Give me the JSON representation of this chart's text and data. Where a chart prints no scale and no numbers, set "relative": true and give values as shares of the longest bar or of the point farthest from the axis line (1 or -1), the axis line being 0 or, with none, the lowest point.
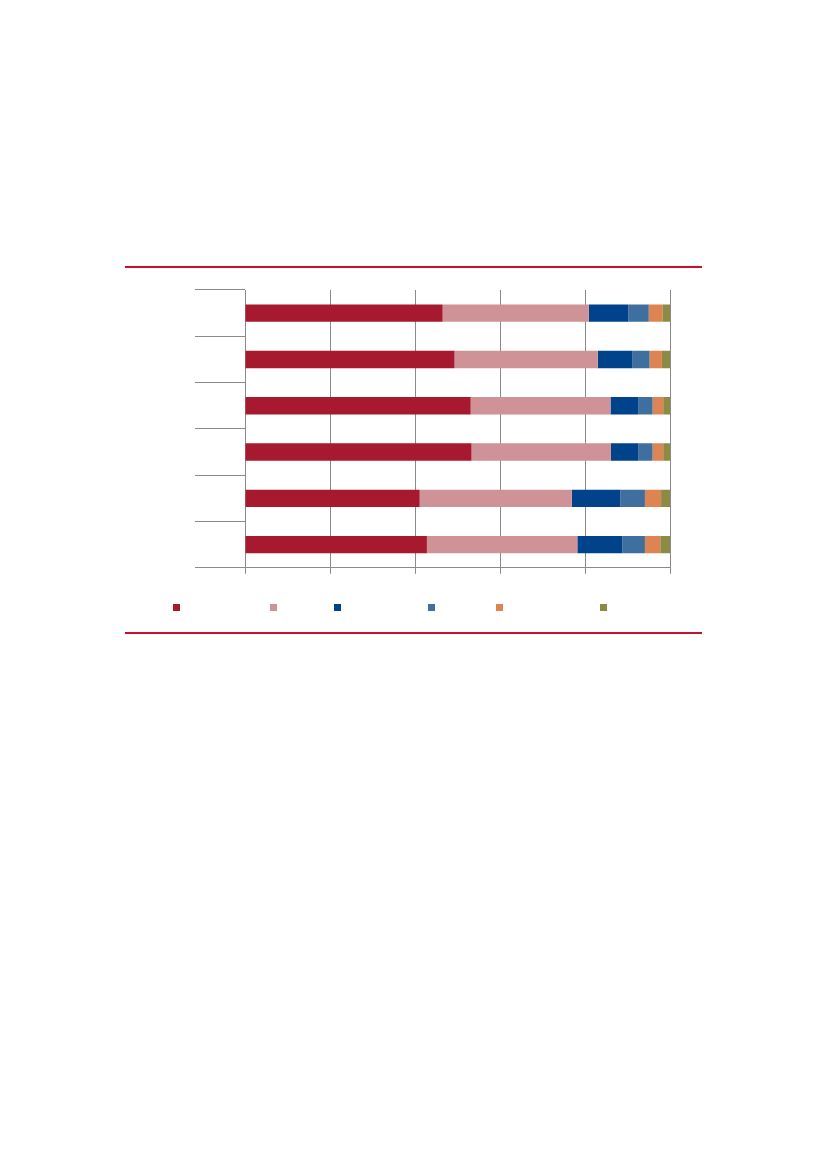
{
  "chart_data": {
    "type": "bar",
    "orientation": "horizontal",
    "stacked": true,
    "relative": true,
    "grid": "x",
    "categories": [
      null,
      null,
      null,
      null,
      null,
      null
    ],
    "series": [
      {
        "color": "#a6192e",
        "values": [
          0.465,
          0.493,
          0.531,
          0.533,
          0.411,
          0.428
        ]
      },
      {
        "color": "#cf9296",
        "values": [
          0.344,
          0.337,
          0.329,
          0.328,
          0.358,
          0.354
        ]
      },
      {
        "color": "#00438a",
        "values": [
          0.093,
          0.081,
          0.065,
          0.064,
          0.114,
          0.106
        ]
      },
      {
        "color": "#3f6f9e",
        "values": [
          0.048,
          0.041,
          0.034,
          0.034,
          0.058,
          0.053
        ]
      },
      {
        "color": "#dd8452",
        "values": [
          0.032,
          0.029,
          0.025,
          0.025,
          0.038,
          0.036
        ]
      },
      {
        "color": "#8b8b45",
        "values": [
          0.018,
          0.019,
          0.016,
          0.016,
          0.021,
          0.023
        ]
      }
    ]
  }
}
